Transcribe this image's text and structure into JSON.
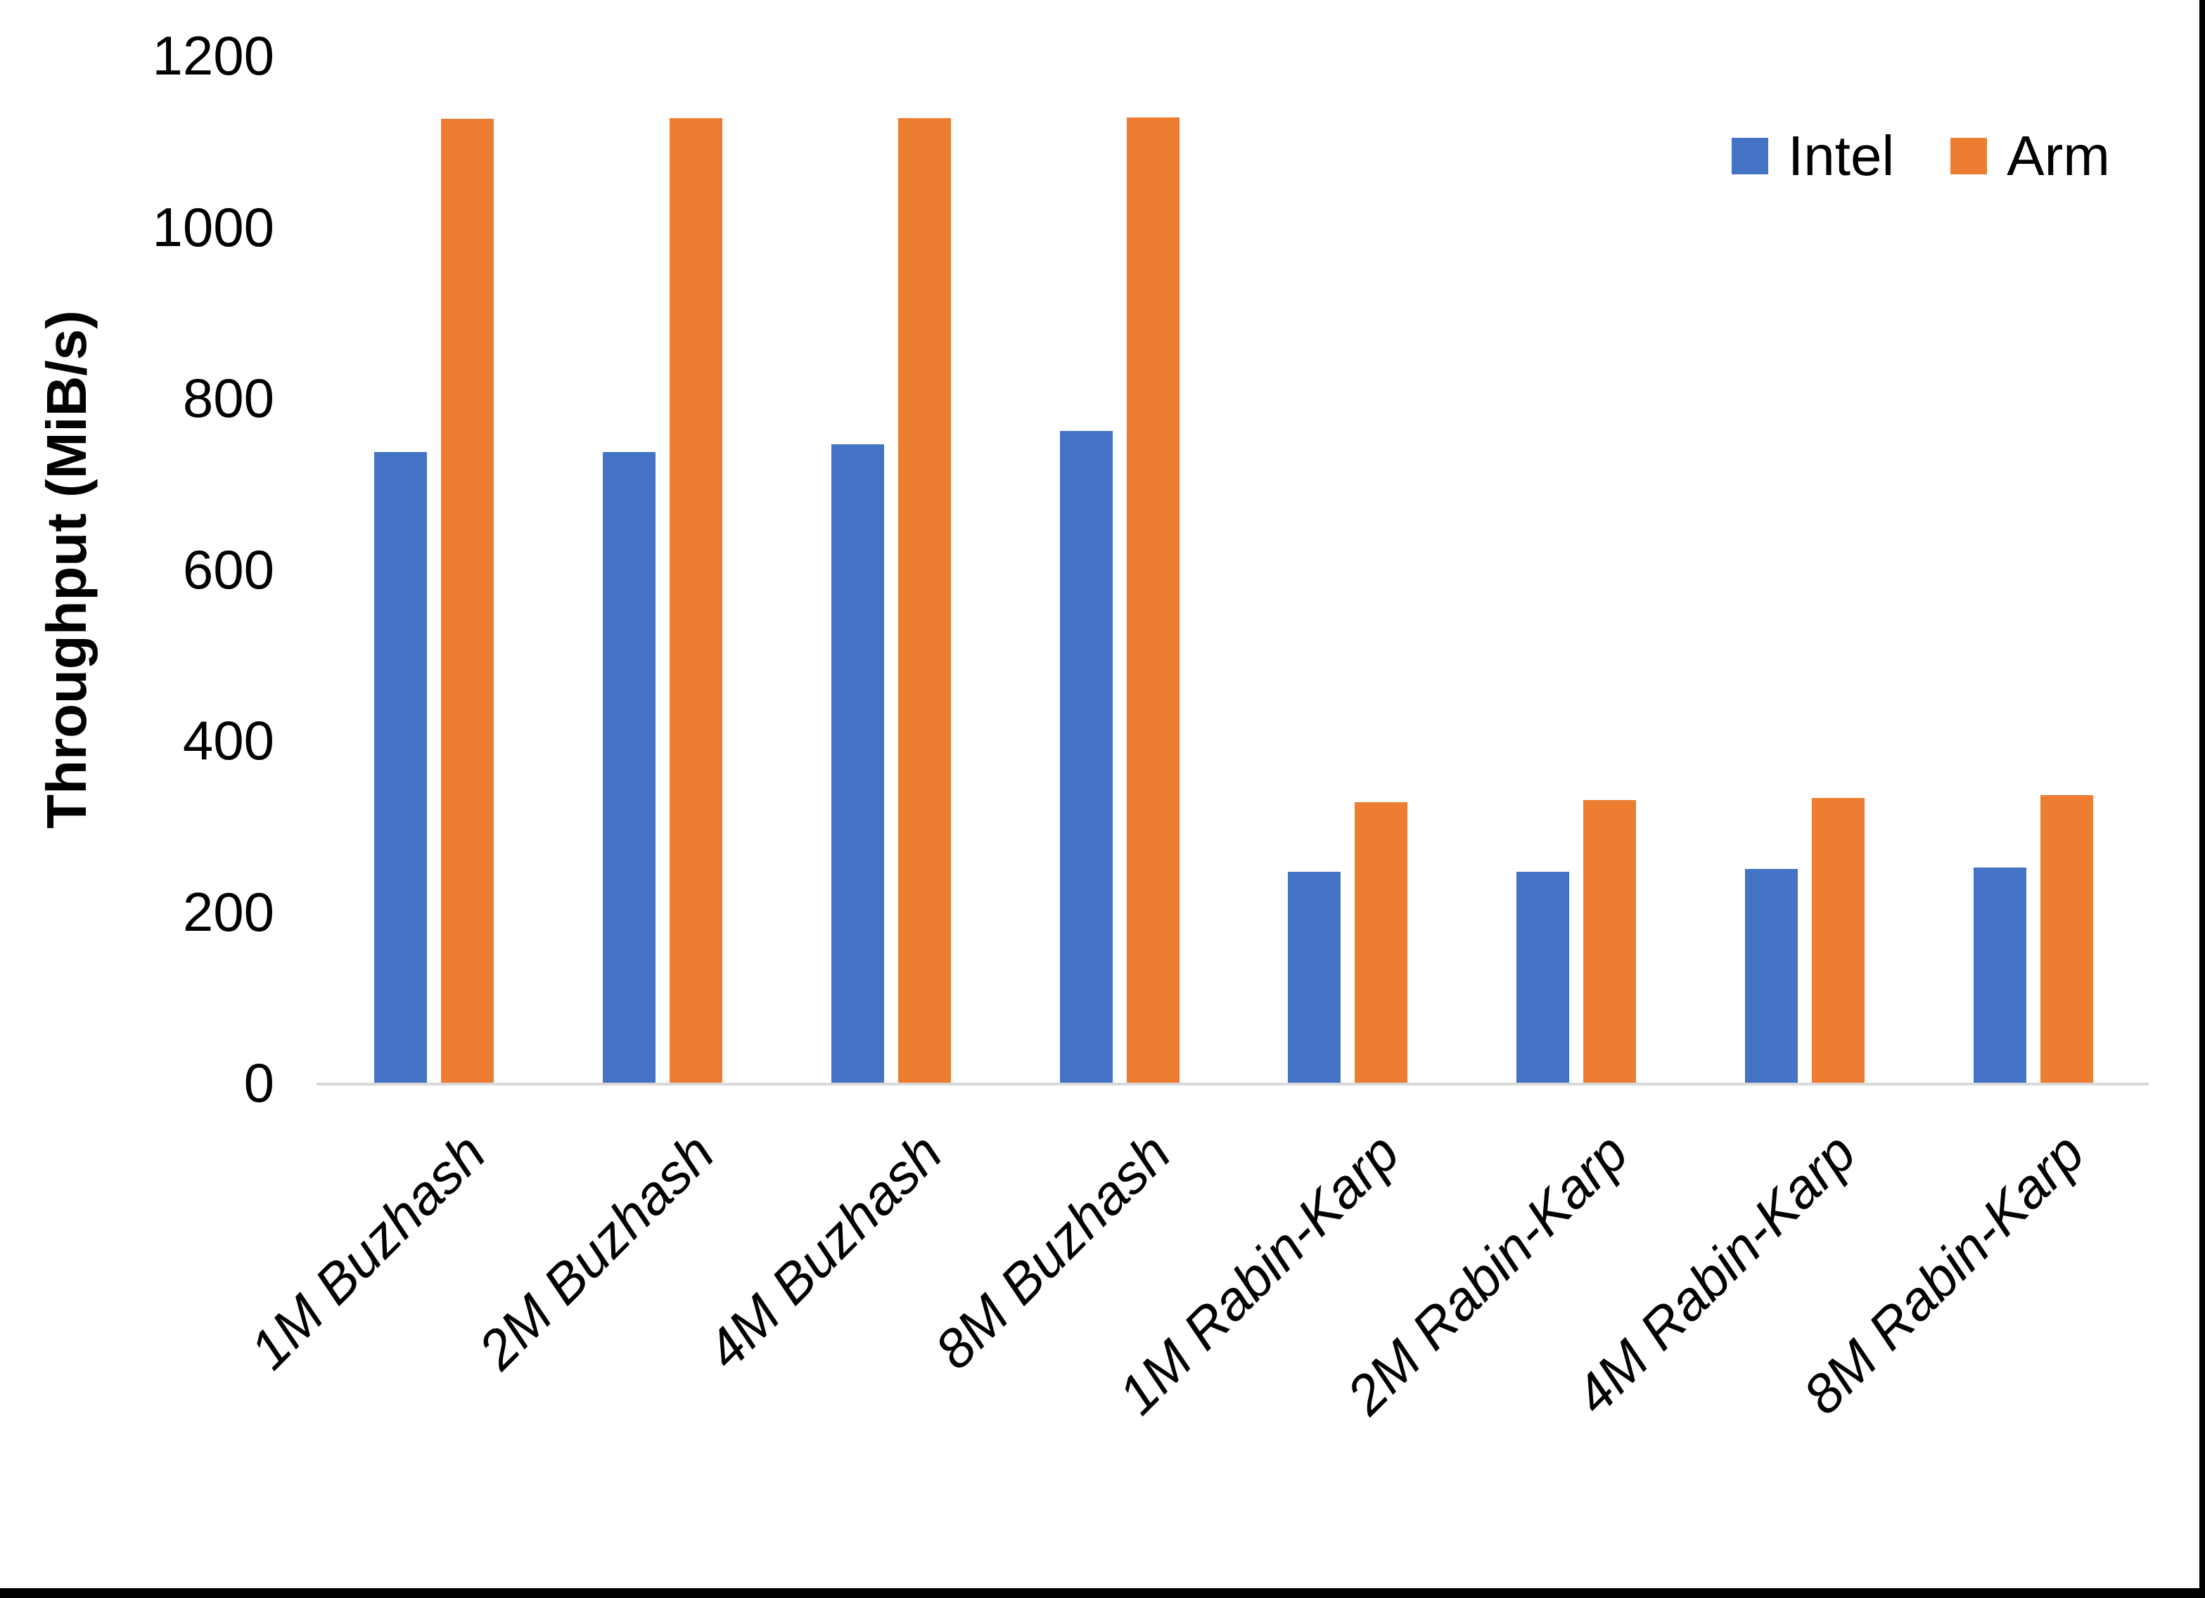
{
  "chart_data": {
    "type": "bar",
    "title": "",
    "xlabel": "",
    "ylabel": "Throughput (MiB/s)",
    "ylim": [
      0,
      1200
    ],
    "yticks": [
      0,
      200,
      400,
      600,
      800,
      1000,
      1200
    ],
    "grid": false,
    "legend_position": "top-right",
    "categories": [
      "1M Buzhash",
      "2M Buzhash",
      "4M Buzhash",
      "8M Buzhash",
      "1M Rabin-Karp",
      "2M Rabin-Karp",
      "4M Rabin-Karp",
      "8M Rabin-Karp"
    ],
    "series": [
      {
        "name": "Intel",
        "color": "#4472C4",
        "values": [
          737,
          737,
          746,
          761,
          246,
          246,
          250,
          251
        ]
      },
      {
        "name": "Arm",
        "color": "#ED7D31",
        "values": [
          1126,
          1127,
          1127,
          1128,
          328,
          330,
          333,
          336
        ]
      }
    ],
    "axis_line_color": "#D9D9D9",
    "text_color": "#000000"
  },
  "legend": {
    "items": [
      {
        "label": "Intel",
        "color": "#4472C4"
      },
      {
        "label": "Arm",
        "color": "#ED7D31"
      }
    ]
  }
}
